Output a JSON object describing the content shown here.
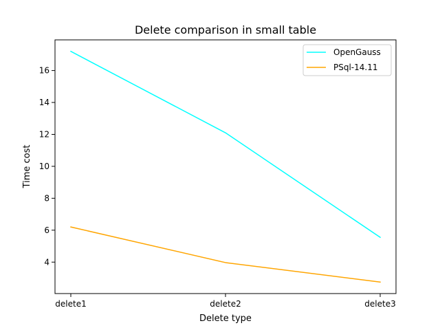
{
  "chart_data": {
    "type": "line",
    "title": "Delete comparison in small table",
    "xlabel": "Delete type",
    "ylabel": "Time cost",
    "categories": [
      "delete1",
      "delete2",
      "delete3"
    ],
    "series": [
      {
        "name": "OpenGauss",
        "values": [
          17.2,
          12.1,
          5.55
        ],
        "color": "#00ffff"
      },
      {
        "name": "PSql-14.11",
        "values": [
          6.2,
          3.97,
          2.75
        ],
        "color": "#ffa500"
      }
    ],
    "yticks": [
      4,
      6,
      8,
      10,
      12,
      14,
      16
    ],
    "ylim": [
      2.03,
      17.92
    ],
    "grid": false,
    "legend_position": "top-right"
  }
}
